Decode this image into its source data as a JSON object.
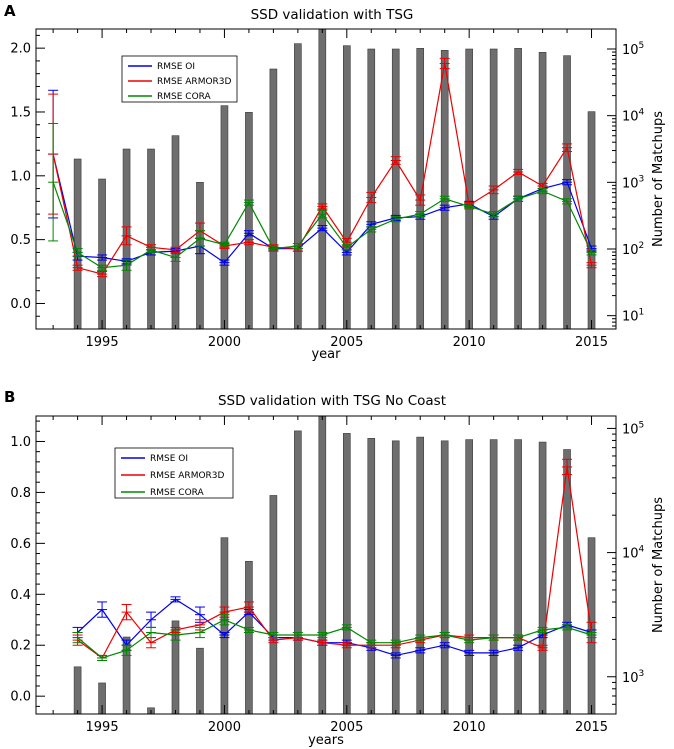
{
  "colors": {
    "oi": "#0000ee",
    "armor": "#ee0000",
    "cora": "#008800",
    "bar": "#6e6e6e"
  },
  "chart_data": [
    {
      "type": "bar+line",
      "panel": "A",
      "title": "SSD validation with TSG",
      "xlabel": "year",
      "ylabel_right": "Number of Matchups",
      "xlim": [
        1992.3,
        2016
      ],
      "ylim": [
        -0.2,
        2.15
      ],
      "yticks": [
        "0.0",
        "0.5",
        "1.0",
        "1.5",
        "2.0"
      ],
      "ytick_values": [
        0.0,
        0.5,
        1.0,
        1.5,
        2.0
      ],
      "xticks": [
        "1995",
        "2000",
        "2005",
        "2010",
        "2015"
      ],
      "xtick_values": [
        1995,
        2000,
        2005,
        2010,
        2015
      ],
      "rlog_range": [
        0.8,
        5.3
      ],
      "rticks": [
        {
          "base": "10",
          "exp": "1",
          "value": 1
        },
        {
          "base": "10",
          "exp": "2",
          "value": 2
        },
        {
          "base": "10",
          "exp": "3",
          "value": 3
        },
        {
          "base": "10",
          "exp": "4",
          "value": 4
        },
        {
          "base": "10",
          "exp": "5",
          "value": 5
        }
      ],
      "legend": [
        "RMSE OI",
        "RMSE ARMOR3D",
        "RMSE CORA"
      ],
      "legend_position": "upper-left",
      "bars": {
        "years": [
          1994,
          1995,
          1996,
          1997,
          1998,
          1999,
          2000,
          2001,
          2002,
          2003,
          2004,
          2005,
          2006,
          2007,
          2008,
          2009,
          2010,
          2011,
          2012,
          2013,
          2014,
          2015
        ],
        "log10_count": [
          3.35,
          3.05,
          3.5,
          3.5,
          3.7,
          3.0,
          4.15,
          4.05,
          4.7,
          5.08,
          5.3,
          5.05,
          5.0,
          5.0,
          5.01,
          4.98,
          5.0,
          5.0,
          5.01,
          4.95,
          4.9,
          4.06
        ]
      },
      "series": [
        {
          "name": "RMSE OI",
          "color_key": "oi",
          "x": [
            1993,
            1994,
            1995,
            1996,
            1997,
            1998,
            1999,
            2000,
            2001,
            2002,
            2003,
            2004,
            2005,
            2006,
            2007,
            2008,
            2009,
            2010,
            2011,
            2012,
            2013,
            2014,
            2015
          ],
          "y": [
            1.17,
            0.37,
            0.36,
            0.33,
            0.4,
            0.41,
            0.45,
            0.32,
            0.55,
            0.43,
            0.43,
            0.59,
            0.4,
            0.62,
            0.67,
            0.68,
            0.75,
            0.78,
            0.68,
            0.82,
            0.9,
            0.95,
            0.43
          ],
          "err": [
            0.5,
            0.03,
            0.02,
            0.02,
            0.02,
            0.02,
            0.06,
            0.02,
            0.02,
            0.02,
            0.02,
            0.02,
            0.02,
            0.02,
            0.02,
            0.02,
            0.02,
            0.02,
            0.02,
            0.02,
            0.02,
            0.02,
            0.02
          ]
        },
        {
          "name": "RMSE ARMOR3D",
          "color_key": "armor",
          "x": [
            1993,
            1994,
            1995,
            1996,
            1997,
            1998,
            1999,
            2000,
            2001,
            2002,
            2003,
            2004,
            2005,
            2006,
            2007,
            2008,
            2009,
            2010,
            2011,
            2012,
            2013,
            2014,
            2015
          ],
          "y": [
            1.17,
            0.28,
            0.23,
            0.53,
            0.44,
            0.42,
            0.57,
            0.45,
            0.48,
            0.44,
            0.43,
            0.76,
            0.48,
            0.83,
            1.12,
            0.81,
            1.88,
            0.77,
            0.89,
            1.03,
            0.92,
            1.22,
            0.3
          ],
          "err": [
            0.47,
            0.02,
            0.02,
            0.07,
            0.02,
            0.02,
            0.06,
            0.02,
            0.02,
            0.02,
            0.02,
            0.02,
            0.03,
            0.04,
            0.03,
            0.04,
            0.04,
            0.02,
            0.03,
            0.02,
            0.02,
            0.03,
            0.02
          ]
        },
        {
          "name": "RMSE CORA",
          "color_key": "cora",
          "x": [
            1993,
            1994,
            1995,
            1996,
            1997,
            1998,
            1999,
            2000,
            2001,
            2002,
            2003,
            2004,
            2005,
            2006,
            2007,
            2008,
            2009,
            2010,
            2011,
            2012,
            2013,
            2014,
            2015
          ],
          "y": [
            0.95,
            0.4,
            0.28,
            0.3,
            0.42,
            0.36,
            0.51,
            0.46,
            0.79,
            0.43,
            0.45,
            0.7,
            0.44,
            0.58,
            0.66,
            0.7,
            0.82,
            0.76,
            0.7,
            0.82,
            0.88,
            0.8,
            0.4
          ],
          "err": [
            0.46,
            0.03,
            0.02,
            0.04,
            0.02,
            0.03,
            0.06,
            0.02,
            0.02,
            0.02,
            0.02,
            0.03,
            0.02,
            0.02,
            0.02,
            0.02,
            0.02,
            0.02,
            0.02,
            0.02,
            0.02,
            0.02,
            0.02
          ]
        }
      ]
    },
    {
      "type": "bar+line",
      "panel": "B",
      "title": "SSD validation with TSG No Coast",
      "xlabel": "years",
      "ylabel_right": "Number of Matchups",
      "xlim": [
        1992.3,
        2016
      ],
      "ylim": [
        -0.07,
        1.1
      ],
      "yticks": [
        "0.0",
        "0.2",
        "0.4",
        "0.6",
        "0.8",
        "1.0"
      ],
      "ytick_values": [
        0.0,
        0.2,
        0.4,
        0.6,
        0.8,
        1.0
      ],
      "xticks": [
        "1995",
        "2000",
        "2005",
        "2010",
        "2015"
      ],
      "xtick_values": [
        1995,
        2000,
        2005,
        2010,
        2015
      ],
      "rlog_range": [
        2.7,
        5.1
      ],
      "rticks": [
        {
          "base": "10",
          "exp": "3",
          "value": 3
        },
        {
          "base": "10",
          "exp": "4",
          "value": 4
        },
        {
          "base": "10",
          "exp": "5",
          "value": 5
        }
      ],
      "legend": [
        "RMSE OI",
        "RMSE ARMOR3D",
        "RMSE CORA"
      ],
      "legend_position": "upper-left",
      "bars": {
        "years": [
          1994,
          1995,
          1996,
          1997,
          1998,
          1999,
          2000,
          2001,
          2002,
          2003,
          2004,
          2005,
          2006,
          2007,
          2008,
          2009,
          2010,
          2011,
          2012,
          2013,
          2014,
          2015
        ],
        "log10_count": [
          3.08,
          2.95,
          3.32,
          2.75,
          3.45,
          3.23,
          4.12,
          3.93,
          4.46,
          4.98,
          5.12,
          4.96,
          4.92,
          4.9,
          4.93,
          4.9,
          4.91,
          4.91,
          4.91,
          4.89,
          4.83,
          4.12
        ]
      },
      "series": [
        {
          "name": "RMSE OI",
          "color_key": "oi",
          "x": [
            1994,
            1995,
            1996,
            1997,
            1998,
            1999,
            2000,
            2001,
            2002,
            2003,
            2004,
            2005,
            2006,
            2007,
            2008,
            2009,
            2010,
            2011,
            2012,
            2013,
            2014,
            2015
          ],
          "y": [
            0.25,
            0.34,
            0.2,
            0.3,
            0.38,
            0.32,
            0.24,
            0.33,
            0.23,
            0.23,
            0.21,
            0.21,
            0.19,
            0.16,
            0.18,
            0.2,
            0.17,
            0.17,
            0.19,
            0.24,
            0.28,
            0.25
          ],
          "err": [
            0.02,
            0.03,
            0.02,
            0.03,
            0.01,
            0.03,
            0.01,
            0.01,
            0.01,
            0.01,
            0.01,
            0.01,
            0.01,
            0.01,
            0.01,
            0.01,
            0.01,
            0.01,
            0.01,
            0.01,
            0.01,
            0.01
          ]
        },
        {
          "name": "RMSE ARMOR3D",
          "color_key": "armor",
          "x": [
            1994,
            1995,
            1996,
            1997,
            1998,
            1999,
            2000,
            2001,
            2002,
            2003,
            2004,
            2005,
            2006,
            2007,
            2008,
            2009,
            2010,
            2011,
            2012,
            2013,
            2014,
            2015
          ],
          "y": [
            0.22,
            0.15,
            0.33,
            0.21,
            0.26,
            0.28,
            0.33,
            0.35,
            0.22,
            0.23,
            0.21,
            0.2,
            0.2,
            0.2,
            0.22,
            0.24,
            0.23,
            0.23,
            0.23,
            0.19,
            0.9,
            0.25
          ],
          "err": [
            0.02,
            0.01,
            0.03,
            0.02,
            0.01,
            0.02,
            0.02,
            0.02,
            0.01,
            0.01,
            0.01,
            0.01,
            0.01,
            0.01,
            0.01,
            0.01,
            0.01,
            0.01,
            0.01,
            0.01,
            0.03,
            0.04
          ]
        },
        {
          "name": "RMSE CORA",
          "color_key": "cora",
          "x": [
            1994,
            1995,
            1996,
            1997,
            1998,
            1999,
            2000,
            2001,
            2002,
            2003,
            2004,
            2005,
            2006,
            2007,
            2008,
            2009,
            2010,
            2011,
            2012,
            2013,
            2014,
            2015
          ],
          "y": [
            0.23,
            0.15,
            0.18,
            0.25,
            0.24,
            0.25,
            0.3,
            0.26,
            0.24,
            0.24,
            0.24,
            0.27,
            0.21,
            0.21,
            0.23,
            0.24,
            0.22,
            0.23,
            0.23,
            0.26,
            0.27,
            0.24
          ],
          "err": [
            0.02,
            0.01,
            0.02,
            0.02,
            0.02,
            0.02,
            0.02,
            0.01,
            0.01,
            0.01,
            0.01,
            0.01,
            0.01,
            0.01,
            0.01,
            0.01,
            0.01,
            0.01,
            0.01,
            0.01,
            0.01,
            0.01
          ]
        }
      ]
    }
  ]
}
